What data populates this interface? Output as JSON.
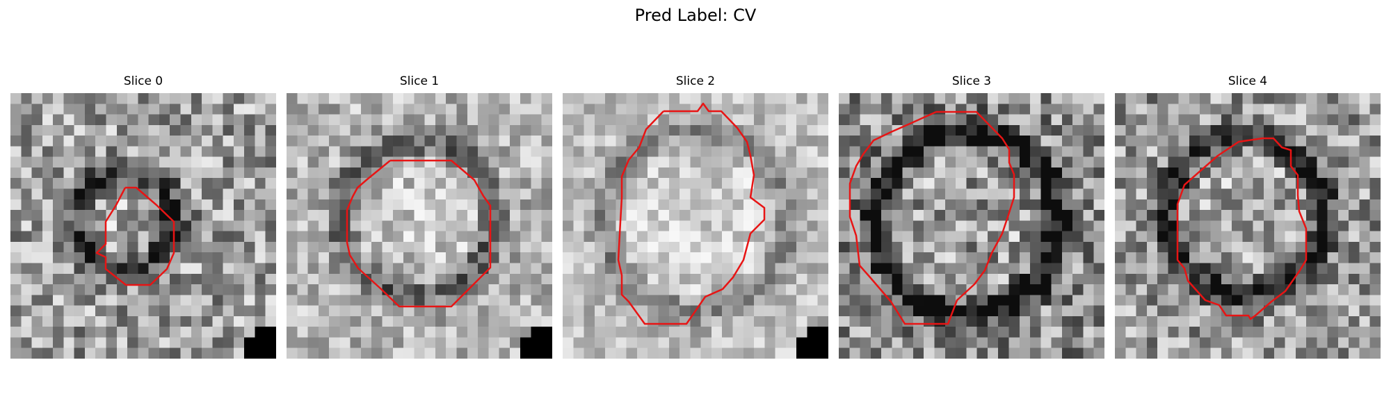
{
  "figure": {
    "suptitle": "Pred Label: CV"
  },
  "colors": {
    "contour": "#e81414",
    "background": "#ffffff"
  },
  "slices": [
    {
      "title": "Slice 0"
    },
    {
      "title": "Slice 1"
    },
    {
      "title": "Slice 2"
    },
    {
      "title": "Slice 3"
    },
    {
      "title": "Slice 4"
    }
  ]
}
